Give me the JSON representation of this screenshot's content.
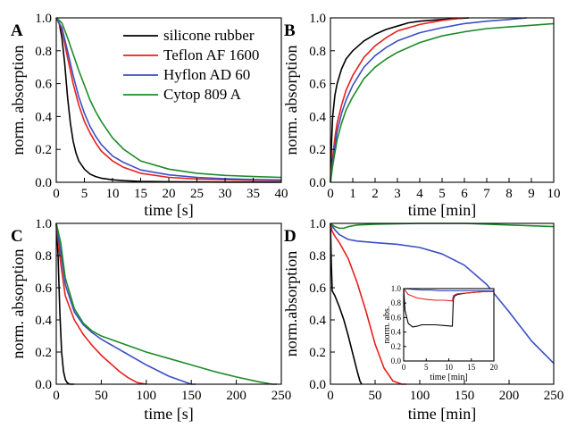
{
  "series_colors": {
    "silicone": "#000000",
    "teflon": "#e8201c",
    "hyflon": "#3b4fc4",
    "cytop": "#1f8a2a"
  },
  "legend": {
    "position": "top-right of panel A",
    "entries": [
      {
        "key": "silicone",
        "label": "silicone rubber"
      },
      {
        "key": "teflon",
        "label": "Teflon AF 1600"
      },
      {
        "key": "hyflon",
        "label": "Hyflon AD 60"
      },
      {
        "key": "cytop",
        "label": "Cytop 809 A"
      }
    ]
  },
  "chart_data": [
    {
      "id": "A",
      "panel_label": "A",
      "type": "line",
      "xlabel": "time [s]",
      "ylabel": "norm. absorption",
      "xlim": [
        0,
        40
      ],
      "ylim": [
        0,
        1.0
      ],
      "x_ticks": [
        0,
        5,
        10,
        15,
        20,
        25,
        30,
        35,
        40
      ],
      "y_ticks": [
        "0.0",
        "0.2",
        "0.4",
        "0.6",
        "0.8",
        "1.0"
      ],
      "series": [
        {
          "key": "silicone",
          "name": "silicone rubber",
          "x": [
            0,
            0.5,
            1,
            1.5,
            2,
            2.5,
            3,
            3.5,
            4,
            5,
            6,
            7,
            8,
            10,
            12,
            15,
            20,
            30,
            40
          ],
          "y": [
            1.0,
            0.97,
            0.88,
            0.72,
            0.52,
            0.36,
            0.25,
            0.18,
            0.13,
            0.08,
            0.05,
            0.035,
            0.025,
            0.015,
            0.01,
            0.005,
            0.003,
            0.001,
            0.0
          ]
        },
        {
          "key": "teflon",
          "name": "Teflon AF 1600",
          "x": [
            0,
            1,
            2,
            3,
            4,
            5,
            6,
            7,
            8,
            10,
            12,
            15,
            20,
            25,
            30,
            35,
            40
          ],
          "y": [
            1.0,
            0.93,
            0.76,
            0.6,
            0.47,
            0.37,
            0.3,
            0.24,
            0.19,
            0.13,
            0.09,
            0.055,
            0.03,
            0.02,
            0.015,
            0.012,
            0.01
          ]
        },
        {
          "key": "hyflon",
          "name": "Hyflon AD 60",
          "x": [
            0,
            1,
            2,
            3,
            4,
            5,
            6,
            7,
            8,
            10,
            12,
            15,
            20,
            25,
            30,
            35,
            40
          ],
          "y": [
            1.0,
            0.94,
            0.8,
            0.65,
            0.52,
            0.42,
            0.34,
            0.28,
            0.23,
            0.16,
            0.12,
            0.075,
            0.045,
            0.03,
            0.022,
            0.017,
            0.014
          ]
        },
        {
          "key": "cytop",
          "name": "Cytop 809 A",
          "x": [
            0,
            1,
            2,
            3,
            4,
            5,
            6,
            7,
            8,
            10,
            12,
            15,
            20,
            25,
            30,
            35,
            40
          ],
          "y": [
            1.0,
            0.97,
            0.88,
            0.78,
            0.68,
            0.59,
            0.5,
            0.43,
            0.37,
            0.27,
            0.2,
            0.13,
            0.08,
            0.055,
            0.042,
            0.035,
            0.03
          ]
        }
      ]
    },
    {
      "id": "B",
      "panel_label": "B",
      "type": "line",
      "xlabel": "time [min]",
      "ylabel": "norm. absorption",
      "xlim": [
        0,
        10
      ],
      "ylim": [
        0,
        1.0
      ],
      "x_ticks": [
        0,
        1,
        2,
        3,
        4,
        5,
        6,
        7,
        8,
        9,
        10
      ],
      "y_ticks": [
        "0.0",
        "0.2",
        "0.4",
        "0.6",
        "0.8",
        "1.0"
      ],
      "series": [
        {
          "key": "silicone",
          "name": "silicone rubber",
          "x": [
            0,
            0.05,
            0.1,
            0.2,
            0.3,
            0.5,
            0.7,
            1,
            1.5,
            2,
            2.5,
            3,
            3.5,
            4,
            5,
            6.2
          ],
          "y": [
            0.0,
            0.25,
            0.4,
            0.53,
            0.6,
            0.69,
            0.75,
            0.8,
            0.86,
            0.9,
            0.93,
            0.95,
            0.97,
            0.98,
            0.99,
            1.0
          ]
        },
        {
          "key": "teflon",
          "name": "Teflon AF 1600",
          "x": [
            0,
            0.1,
            0.2,
            0.3,
            0.5,
            0.7,
            1,
            1.5,
            2,
            2.5,
            3,
            4,
            5,
            6
          ],
          "y": [
            0.0,
            0.15,
            0.27,
            0.36,
            0.47,
            0.56,
            0.65,
            0.76,
            0.83,
            0.88,
            0.92,
            0.96,
            0.985,
            1.0
          ]
        },
        {
          "key": "hyflon",
          "name": "Hyflon AD 60",
          "x": [
            0,
            0.1,
            0.2,
            0.3,
            0.5,
            0.7,
            1,
            1.5,
            2,
            2.5,
            3,
            4,
            5,
            6,
            7,
            8,
            8.8
          ],
          "y": [
            0.0,
            0.12,
            0.22,
            0.31,
            0.42,
            0.5,
            0.59,
            0.7,
            0.77,
            0.82,
            0.86,
            0.91,
            0.94,
            0.965,
            0.98,
            0.99,
            1.0
          ]
        },
        {
          "key": "cytop",
          "name": "Cytop 809 A",
          "x": [
            0,
            0.1,
            0.2,
            0.3,
            0.5,
            0.7,
            1,
            1.5,
            2,
            2.5,
            3,
            4,
            5,
            6,
            7,
            8,
            9,
            10
          ],
          "y": [
            0.0,
            0.1,
            0.18,
            0.26,
            0.36,
            0.44,
            0.52,
            0.63,
            0.7,
            0.75,
            0.79,
            0.85,
            0.89,
            0.915,
            0.935,
            0.945,
            0.955,
            0.965
          ]
        }
      ]
    },
    {
      "id": "C",
      "panel_label": "C",
      "type": "line",
      "xlabel": "time [s]",
      "ylabel": "norm. absorption",
      "xlim": [
        0,
        250
      ],
      "ylim": [
        0,
        1.0
      ],
      "x_ticks": [
        0,
        50,
        100,
        150,
        200,
        250
      ],
      "y_ticks": [
        "0.0",
        "0.2",
        "0.4",
        "0.6",
        "0.8",
        "1.0"
      ],
      "series": [
        {
          "key": "silicone",
          "name": "silicone rubber",
          "x": [
            0,
            2,
            4,
            6,
            8,
            10,
            12,
            15,
            20
          ],
          "y": [
            1.0,
            0.8,
            0.45,
            0.2,
            0.08,
            0.03,
            0.01,
            0.0,
            0.0
          ]
        },
        {
          "key": "teflon",
          "name": "Teflon AF 1600",
          "x": [
            0,
            5,
            10,
            20,
            30,
            40,
            50,
            60,
            70,
            80,
            90,
            100
          ],
          "y": [
            1.0,
            0.75,
            0.55,
            0.4,
            0.31,
            0.24,
            0.18,
            0.13,
            0.08,
            0.04,
            0.01,
            0.0
          ]
        },
        {
          "key": "hyflon",
          "name": "Hyflon AD 60",
          "x": [
            0,
            5,
            10,
            20,
            30,
            40,
            50,
            75,
            100,
            125,
            150,
            155
          ],
          "y": [
            1.0,
            0.82,
            0.62,
            0.45,
            0.37,
            0.32,
            0.28,
            0.2,
            0.12,
            0.05,
            0.0,
            0.0
          ]
        },
        {
          "key": "cytop",
          "name": "Cytop 809 A",
          "x": [
            0,
            5,
            10,
            20,
            30,
            40,
            50,
            75,
            100,
            125,
            150,
            175,
            200,
            225,
            240,
            245
          ],
          "y": [
            1.0,
            0.88,
            0.66,
            0.47,
            0.38,
            0.33,
            0.3,
            0.25,
            0.2,
            0.16,
            0.12,
            0.08,
            0.045,
            0.015,
            0.0,
            0.0
          ]
        }
      ]
    },
    {
      "id": "D",
      "panel_label": "D",
      "type": "line",
      "xlabel": "time [min]",
      "ylabel": "norm.absorption",
      "xlim": [
        0,
        250
      ],
      "ylim": [
        0,
        1.0
      ],
      "x_ticks": [
        0,
        50,
        100,
        150,
        200,
        250
      ],
      "y_ticks": [
        "0.0",
        "0.2",
        "0.4",
        "0.6",
        "0.8",
        "1.0"
      ],
      "series": [
        {
          "key": "silicone",
          "name": "silicone rubber",
          "x": [
            0,
            1,
            2,
            5,
            10,
            15,
            20,
            25,
            30,
            33,
            35
          ],
          "y": [
            1.0,
            0.75,
            0.58,
            0.55,
            0.48,
            0.4,
            0.3,
            0.19,
            0.08,
            0.02,
            0.0
          ]
        },
        {
          "key": "teflon",
          "name": "Teflon AF 1600",
          "x": [
            0,
            2,
            5,
            10,
            15,
            20,
            30,
            40,
            50,
            60,
            70,
            80,
            85
          ],
          "y": [
            1.0,
            0.95,
            0.92,
            0.88,
            0.83,
            0.78,
            0.63,
            0.45,
            0.25,
            0.1,
            0.02,
            0.0,
            0.0
          ]
        },
        {
          "key": "hyflon",
          "name": "Hyflon AD 60",
          "x": [
            0,
            5,
            10,
            20,
            30,
            50,
            75,
            100,
            125,
            150,
            175,
            200,
            225,
            250
          ],
          "y": [
            1.0,
            0.96,
            0.93,
            0.9,
            0.89,
            0.88,
            0.87,
            0.85,
            0.81,
            0.74,
            0.62,
            0.45,
            0.27,
            0.13
          ]
        },
        {
          "key": "cytop",
          "name": "Cytop 809 A",
          "x": [
            0,
            5,
            10,
            15,
            20,
            30,
            50,
            100,
            150,
            200,
            250
          ],
          "y": [
            1.0,
            0.98,
            0.97,
            0.97,
            0.98,
            0.99,
            0.995,
            1.0,
            1.0,
            0.99,
            0.98
          ]
        }
      ]
    },
    {
      "id": "D-inset",
      "type": "line",
      "xlabel": "time [min]",
      "ylabel": "norm. abs.",
      "xlim": [
        0,
        20
      ],
      "ylim": [
        0,
        1.0
      ],
      "x_ticks": [
        0,
        5,
        10,
        15,
        20
      ],
      "y_ticks": [
        "0.0",
        "0.2",
        "0.4",
        "0.6",
        "0.8",
        "1.0"
      ],
      "series": [
        {
          "key": "silicone",
          "name": "silicone rubber",
          "x": [
            0,
            0.3,
            1,
            2,
            3,
            4,
            5,
            7,
            9,
            10.8,
            11,
            11.3,
            12,
            14,
            16,
            18,
            20
          ],
          "y": [
            1.0,
            0.7,
            0.52,
            0.47,
            0.48,
            0.5,
            0.5,
            0.5,
            0.49,
            0.48,
            0.85,
            0.9,
            0.92,
            0.94,
            0.95,
            0.96,
            0.96
          ]
        },
        {
          "key": "teflon",
          "name": "Teflon AF 1600",
          "x": [
            0,
            1,
            3,
            5,
            7,
            9,
            10.8,
            11,
            11.5,
            12,
            14,
            16,
            18,
            20
          ],
          "y": [
            1.0,
            0.92,
            0.87,
            0.85,
            0.84,
            0.84,
            0.83,
            0.9,
            0.92,
            0.93,
            0.94,
            0.95,
            0.96,
            0.96
          ]
        },
        {
          "key": "hyflon",
          "name": "Hyflon AD 60",
          "x": [
            0,
            2,
            4,
            6,
            8,
            10,
            12,
            14,
            16,
            18,
            20
          ],
          "y": [
            1.0,
            0.99,
            0.98,
            0.98,
            0.97,
            0.97,
            0.97,
            0.97,
            0.97,
            0.97,
            0.97
          ]
        }
      ]
    }
  ]
}
